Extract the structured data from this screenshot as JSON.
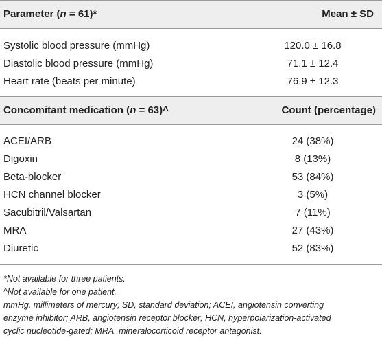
{
  "table": {
    "header1": {
      "param_label_pre": "Parameter (",
      "param_n": "n",
      "param_label_post": " = 61)*",
      "stat_label": "Mean ± SD"
    },
    "vitals": [
      {
        "label": "Systolic blood pressure (mmHg)",
        "value": "120.0 ± 16.8"
      },
      {
        "label": "Diastolic blood pressure (mmHg)",
        "value": "71.1 ± 12.4"
      },
      {
        "label": "Heart rate (beats per minute)",
        "value": "76.9 ± 12.3"
      }
    ],
    "header2": {
      "med_label_pre": "Concomitant medication (",
      "med_n": "n",
      "med_label_post": " = 63)^",
      "count_label": "Count (percentage)"
    },
    "medications": [
      {
        "label": "ACEI/ARB",
        "value": "24 (38%)"
      },
      {
        "label": "Digoxin",
        "value": "8 (13%)"
      },
      {
        "label": "Beta-blocker",
        "value": "53 (84%)"
      },
      {
        "label": "HCN channel blocker",
        "value": "3 (5%)"
      },
      {
        "label": "Sacubitril/Valsartan",
        "value": "7 (11%)"
      },
      {
        "label": "MRA",
        "value": "27 (43%)"
      },
      {
        "label": "Diuretic",
        "value": "52 (83%)"
      }
    ]
  },
  "footnotes": [
    "*Not available for three patients.",
    "^Not available for one patient.",
    "mmHg, millimeters of mercury; SD, standard deviation; ACEI, angiotensin converting",
    "enzyme inhibitor; ARB, angiotensin receptor blocker; HCN, hyperpolarization-activated",
    "cyclic nucleotide-gated; MRA, mineralocorticoid receptor antagonist."
  ]
}
